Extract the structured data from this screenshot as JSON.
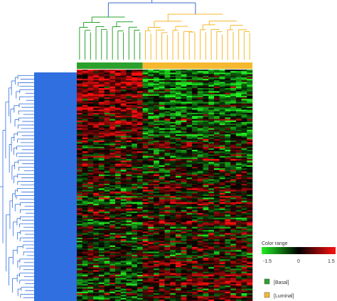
{
  "chart_data": {
    "type": "heatmap",
    "colorscale": {
      "title": "Color range",
      "min": -1.5,
      "mid": 0,
      "max": 1.5,
      "tick_labels": [
        "-1.5",
        "0",
        "1.5"
      ],
      "low_color": "#22ee22",
      "mid_color": "#000000",
      "high_color": "#ff1010"
    },
    "groups": [
      {
        "name": "[Basal]",
        "color": "#2ca02c",
        "n_samples": 12
      },
      {
        "name": "[Luminal]",
        "color": "#f5b82e",
        "n_samples": 20
      }
    ],
    "column_dendrogram": true,
    "row_dendrogram": true,
    "row_dendrogram_color": "#2f6fe0",
    "n_gene_rows": 150,
    "pattern": {
      "upper_block_basal": "high",
      "upper_block_luminal": "low",
      "lower_rows": "mixed"
    }
  }
}
